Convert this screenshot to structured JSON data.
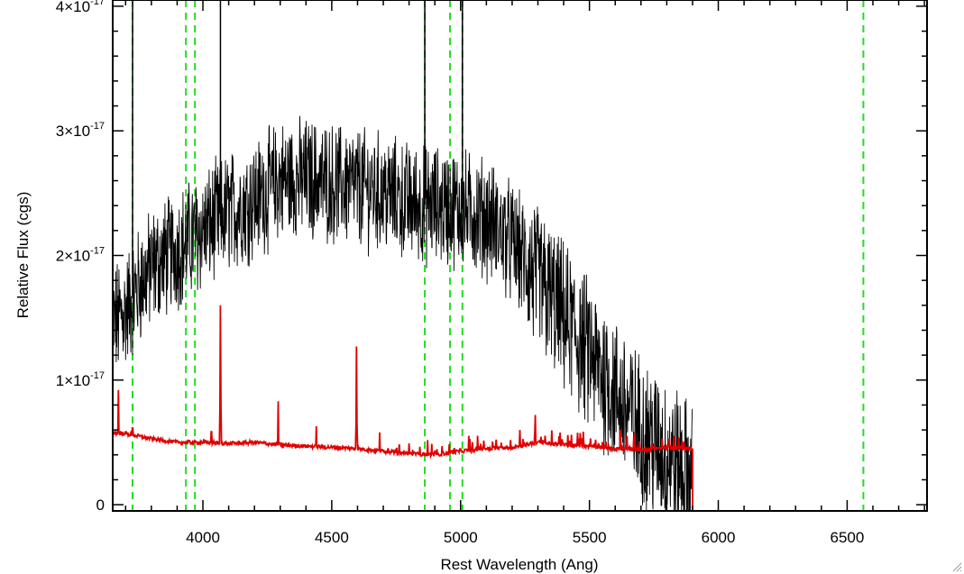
{
  "chart_data": {
    "type": "line",
    "title": "",
    "xlabel": "Rest Wavelength (Ang)",
    "ylabel": "Relative Flux (cgs)",
    "xlim": [
      3650,
      6810
    ],
    "ylim": [
      -5e-19,
      4.05e-17
    ],
    "x_ticks": [
      4000,
      4500,
      5000,
      5500,
      6000,
      6500
    ],
    "x_tick_labels": [
      "4000",
      "4500",
      "5000",
      "5500",
      "6000",
      "6500"
    ],
    "y_ticks": [
      0,
      1e-17,
      2e-17,
      3e-17,
      4e-17
    ],
    "y_tick_labels": [
      {
        "mantissa": "0",
        "exponent": ""
      },
      {
        "mantissa": "1×10",
        "exponent": "-17"
      },
      {
        "mantissa": "2×10",
        "exponent": "-17"
      },
      {
        "mantissa": "3×10",
        "exponent": "-17"
      },
      {
        "mantissa": "4×10",
        "exponent": "-17"
      }
    ],
    "grid": false,
    "legend": "none",
    "series": [
      {
        "style": "noisy-black",
        "color": "#000000",
        "envelope_x": [
          3650,
          3700,
          3750,
          3800,
          3900,
          4000,
          4100,
          4200,
          4300,
          4400,
          4500,
          4600,
          4700,
          4800,
          4900,
          5000,
          5100,
          5200,
          5300,
          5400,
          5500,
          5600,
          5700,
          5800,
          5860,
          5900
        ],
        "envelope_y": [
          1.45e-17,
          1.55e-17,
          1.75e-17,
          1.9e-17,
          2.05e-17,
          2.2e-17,
          2.35e-17,
          2.45e-17,
          2.6e-17,
          2.62e-17,
          2.58e-17,
          2.55e-17,
          2.5e-17,
          2.42e-17,
          2.4e-17,
          2.38e-17,
          2.3e-17,
          2.1e-17,
          1.8e-17,
          1.5e-17,
          1.2e-17,
          9e-18,
          6e-18,
          4e-18,
          3e-18,
          2e-18
        ],
        "spikes": [
          {
            "x": 3727,
            "y": 4.5e-17
          },
          {
            "x": 4068,
            "y": 4.5e-17
          },
          {
            "x": 4861,
            "y": 4.5e-17
          },
          {
            "x": 5007,
            "y": 4.5e-17
          }
        ]
      },
      {
        "style": "red-error",
        "color": "#e00000",
        "x": [
          3650,
          3700,
          3800,
          3900,
          4000,
          4100,
          4200,
          4300,
          4400,
          4500,
          4600,
          4700,
          4800,
          4900,
          5000,
          5100,
          5200,
          5300,
          5400,
          5500,
          5600,
          5700,
          5800,
          5899,
          5900,
          6810
        ],
        "y": [
          5.8e-18,
          5.7e-18,
          5.3e-18,
          5e-18,
          5e-18,
          4.9e-18,
          5e-18,
          4.8e-18,
          4.7e-18,
          4.6e-18,
          4.5e-18,
          4.3e-18,
          4.1e-18,
          4e-18,
          4.3e-18,
          4.5e-18,
          4.6e-18,
          5e-18,
          4.8e-18,
          4.7e-18,
          4.5e-18,
          4.4e-18,
          4.6e-18,
          4.5e-18,
          -5e-19,
          -5e-19
        ],
        "spikes": [
          {
            "x": 3672,
            "y": 9.2e-18
          },
          {
            "x": 3727,
            "y": 8.2e-18
          },
          {
            "x": 4033,
            "y": 7.8e-18
          },
          {
            "x": 4068,
            "y": 1.6e-17
          },
          {
            "x": 4292,
            "y": 8.3e-18
          },
          {
            "x": 4440,
            "y": 6.3e-18
          },
          {
            "x": 4596,
            "y": 1.27e-17
          },
          {
            "x": 4686,
            "y": 5.8e-18
          },
          {
            "x": 5230,
            "y": 6e-18
          },
          {
            "x": 5290,
            "y": 7.2e-18
          },
          {
            "x": 5535,
            "y": 6.5e-18
          },
          {
            "x": 5620,
            "y": 6e-18
          }
        ]
      }
    ],
    "vlines_dashed": {
      "color": "#22dd22",
      "x": [
        3727,
        3934,
        3969,
        4861,
        4959,
        5007,
        6563
      ]
    }
  }
}
